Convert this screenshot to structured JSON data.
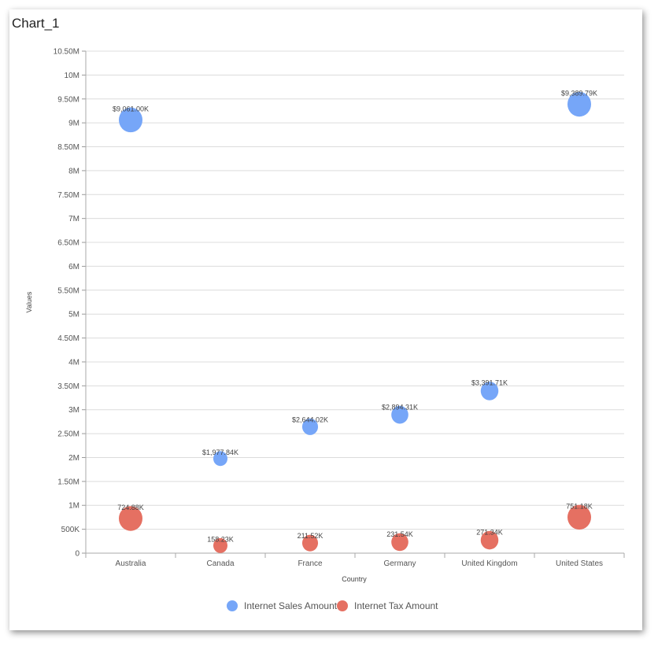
{
  "title": "Chart_1",
  "chart_data": {
    "type": "scatter",
    "subtype": "bubble",
    "title": "Chart_1",
    "xlabel": "Country",
    "ylabel": "Values",
    "ylim": [
      0,
      10500000
    ],
    "yticks": [
      0,
      500000,
      1000000,
      1500000,
      2000000,
      2500000,
      3000000,
      3500000,
      4000000,
      4500000,
      5000000,
      5500000,
      6000000,
      6500000,
      7000000,
      7500000,
      8000000,
      8500000,
      9000000,
      9500000,
      10000000,
      10500000
    ],
    "ytick_labels": [
      "0",
      "500K",
      "1M",
      "1.50M",
      "2M",
      "2.50M",
      "3M",
      "3.50M",
      "4M",
      "4.50M",
      "5M",
      "5.50M",
      "6M",
      "6.50M",
      "7M",
      "7.50M",
      "8M",
      "8.50M",
      "9M",
      "9.50M",
      "10M",
      "10.50M"
    ],
    "categories": [
      "Australia",
      "Canada",
      "France",
      "Germany",
      "United Kingdom",
      "United States"
    ],
    "bubble_size": [
      1.0,
      0.6,
      0.67,
      0.72,
      0.75,
      1.0
    ],
    "grid": true,
    "legend_position": "bottom",
    "series": [
      {
        "name": "Internet Sales Amount",
        "color": "#76a6f8",
        "values": [
          9061000,
          1977840,
          2644020,
          2894310,
          3391710,
          9389790
        ],
        "labels": [
          "$9,061.00K",
          "$1,977.84K",
          "$2,644.02K",
          "$2,894.31K",
          "$3,391.71K",
          "$9,389.79K"
        ]
      },
      {
        "name": "Internet Tax Amount",
        "color": "#e57062",
        "values": [
          724880,
          158230,
          211520,
          231540,
          271340,
          751180
        ],
        "labels": [
          "724.88K",
          "158.23K",
          "211.52K",
          "231.54K",
          "271.34K",
          "751.18K"
        ]
      }
    ]
  }
}
